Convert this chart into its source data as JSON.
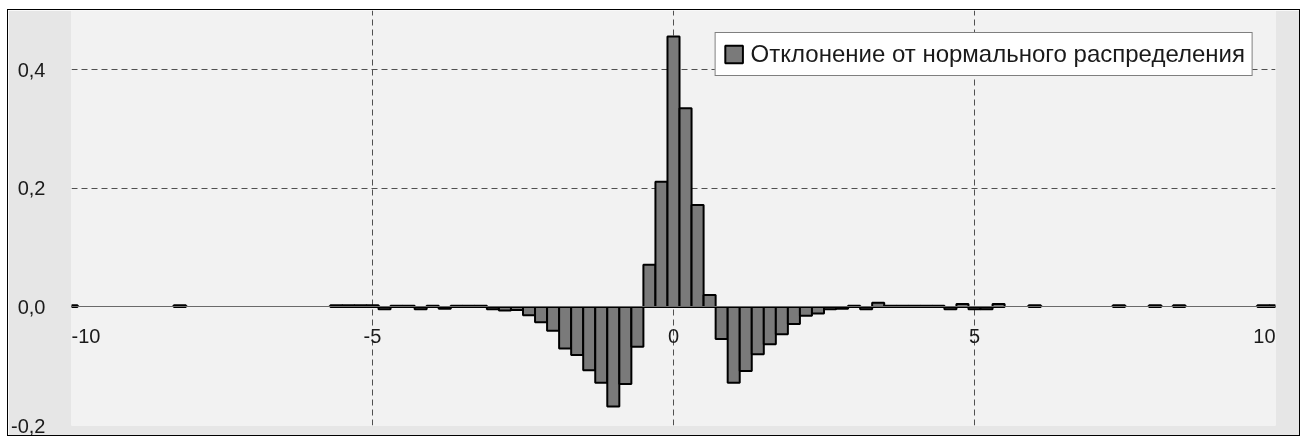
{
  "chart_data": {
    "type": "bar",
    "x": [
      -10.0,
      -8.2,
      -5.6,
      -5.4,
      -5.2,
      -5.0,
      -4.8,
      -4.6,
      -4.4,
      -4.2,
      -4.0,
      -3.8,
      -3.6,
      -3.4,
      -3.2,
      -3.0,
      -2.8,
      -2.6,
      -2.4,
      -2.2,
      -2.0,
      -1.8,
      -1.6,
      -1.4,
      -1.2,
      -1.0,
      -0.8,
      -0.6,
      -0.4,
      -0.2,
      0.0,
      0.2,
      0.4,
      0.6,
      0.8,
      1.0,
      1.2,
      1.4,
      1.6,
      1.8,
      2.0,
      2.2,
      2.4,
      2.6,
      2.8,
      3.0,
      3.2,
      3.4,
      3.6,
      3.8,
      4.0,
      4.2,
      4.4,
      4.6,
      4.8,
      5.0,
      5.2,
      5.4,
      6.0,
      7.4,
      8.0,
      8.4,
      9.8,
      10.0
    ],
    "series": [
      {
        "name": "Отклонение от нормального распределения",
        "color": "#7a7a7a",
        "values": [
          0.003,
          0.003,
          0.003,
          0.003,
          0.003,
          0.003,
          -0.004,
          0.002,
          0.002,
          -0.004,
          0.002,
          -0.003,
          0.002,
          0.002,
          0.002,
          -0.004,
          -0.006,
          -0.005,
          -0.014,
          -0.026,
          -0.04,
          -0.07,
          -0.081,
          -0.107,
          -0.128,
          -0.168,
          -0.13,
          -0.067,
          0.071,
          0.211,
          0.456,
          0.335,
          0.172,
          0.02,
          -0.054,
          -0.128,
          -0.108,
          -0.08,
          -0.063,
          -0.046,
          -0.029,
          -0.015,
          -0.011,
          -0.004,
          -0.003,
          0.002,
          -0.004,
          0.007,
          0.002,
          0.002,
          0.002,
          0.002,
          0.002,
          -0.004,
          0.005,
          -0.004,
          -0.004,
          0.005,
          0.003,
          0.003,
          0.003,
          0.003,
          0.003,
          0.003
        ]
      }
    ],
    "xlim": [
      -10,
      10
    ],
    "xticks": [
      -10,
      -5,
      0,
      5,
      10
    ],
    "ylim": [
      -0.2,
      0.5
    ],
    "yticks": [
      {
        "value": -0.2,
        "label": "-0,2"
      },
      {
        "value": 0,
        "label": "0,0"
      },
      {
        "value": 0.2,
        "label": "0,2"
      },
      {
        "value": 0.4,
        "label": "0,4"
      }
    ],
    "grid": true,
    "legend": "top right"
  }
}
